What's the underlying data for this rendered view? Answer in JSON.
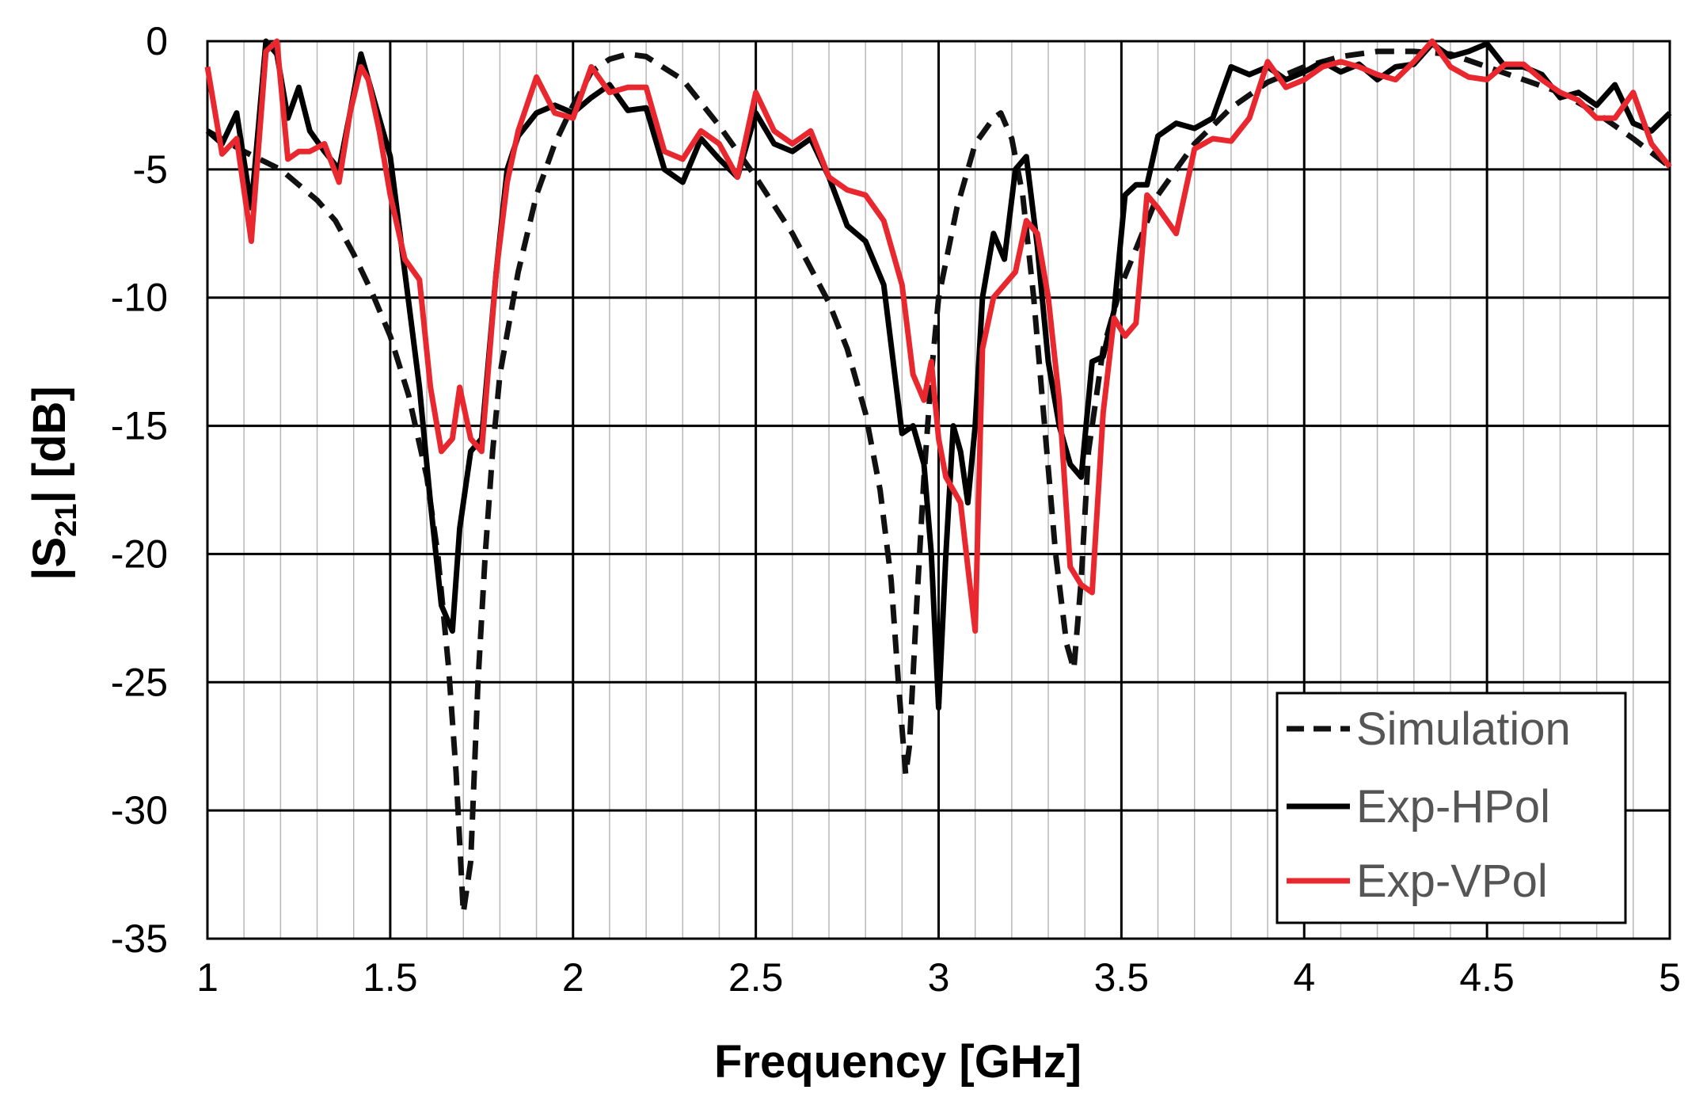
{
  "chart_data": {
    "type": "line",
    "xlabel": "Frequency [GHz]",
    "ylabel_main": "|S",
    "ylabel_sub": "21",
    "ylabel_rest": "| [dB]",
    "xlim": [
      1,
      5
    ],
    "ylim": [
      -35,
      0
    ],
    "x_major_ticks": [
      1,
      1.5,
      2,
      2.5,
      3,
      3.5,
      4,
      4.5,
      5
    ],
    "x_tick_labels": [
      "1",
      "1.5",
      "2",
      "2.5",
      "3",
      "3.5",
      "4",
      "4.5",
      "5"
    ],
    "x_minor_step": 0.1,
    "y_major_ticks": [
      0,
      -5,
      -10,
      -15,
      -20,
      -25,
      -30,
      -35
    ],
    "y_tick_labels": [
      "0",
      "-5",
      "-10",
      "-15",
      "-20",
      "-25",
      "-30",
      "-35"
    ],
    "grid": true,
    "legend_position": "bottom-right",
    "series": [
      {
        "name": "Simulation",
        "color": "#111111",
        "style": "dashed",
        "x": [
          1.0,
          1.1,
          1.2,
          1.3,
          1.35,
          1.4,
          1.45,
          1.5,
          1.55,
          1.6,
          1.63,
          1.66,
          1.68,
          1.7,
          1.72,
          1.74,
          1.76,
          1.78,
          1.8,
          1.85,
          1.9,
          1.95,
          2.0,
          2.05,
          2.1,
          2.15,
          2.2,
          2.3,
          2.4,
          2.5,
          2.6,
          2.7,
          2.75,
          2.8,
          2.84,
          2.87,
          2.89,
          2.91,
          2.92,
          2.94,
          2.96,
          2.98,
          3.0,
          3.05,
          3.1,
          3.15,
          3.17,
          3.2,
          3.23,
          3.26,
          3.29,
          3.32,
          3.35,
          3.37,
          3.39,
          3.41,
          3.45,
          3.5,
          3.6,
          3.7,
          3.8,
          3.9,
          4.0,
          4.1,
          4.2,
          4.3,
          4.4,
          4.5,
          4.6,
          4.7,
          4.8,
          4.9,
          5.0
        ],
        "y": [
          -3.5,
          -4.3,
          -5.0,
          -6.2,
          -7.0,
          -8.3,
          -9.8,
          -11.5,
          -13.8,
          -17.0,
          -20.0,
          -24.5,
          -28.5,
          -34.0,
          -32.0,
          -25.0,
          -20.0,
          -16.0,
          -13.0,
          -9.0,
          -6.0,
          -4.0,
          -2.5,
          -1.2,
          -0.7,
          -0.5,
          -0.6,
          -1.5,
          -3.3,
          -5.3,
          -7.5,
          -10.2,
          -12.0,
          -14.5,
          -17.5,
          -21.0,
          -25.0,
          -28.6,
          -27.5,
          -22.0,
          -17.0,
          -13.0,
          -10.0,
          -6.5,
          -4.0,
          -3.0,
          -2.8,
          -3.8,
          -6.0,
          -10.0,
          -15.0,
          -20.0,
          -23.5,
          -24.5,
          -21.0,
          -16.0,
          -12.0,
          -9.5,
          -6.0,
          -4.0,
          -2.6,
          -1.6,
          -1.0,
          -0.6,
          -0.4,
          -0.4,
          -0.5,
          -1.0,
          -1.5,
          -2.0,
          -2.8,
          -3.8,
          -4.9
        ]
      },
      {
        "name": "Exp-HPol",
        "color": "#000000",
        "style": "solid",
        "x": [
          1.0,
          1.04,
          1.08,
          1.12,
          1.16,
          1.19,
          1.22,
          1.25,
          1.28,
          1.32,
          1.36,
          1.39,
          1.42,
          1.44,
          1.47,
          1.5,
          1.54,
          1.58,
          1.61,
          1.64,
          1.67,
          1.69,
          1.72,
          1.75,
          1.79,
          1.82,
          1.85,
          1.9,
          1.95,
          2.0,
          2.05,
          2.1,
          2.15,
          2.2,
          2.25,
          2.3,
          2.35,
          2.4,
          2.45,
          2.5,
          2.55,
          2.6,
          2.65,
          2.7,
          2.75,
          2.8,
          2.85,
          2.9,
          2.93,
          2.96,
          2.98,
          3.0,
          3.02,
          3.04,
          3.06,
          3.08,
          3.1,
          3.12,
          3.15,
          3.18,
          3.21,
          3.24,
          3.27,
          3.3,
          3.33,
          3.36,
          3.39,
          3.42,
          3.45,
          3.48,
          3.51,
          3.54,
          3.57,
          3.6,
          3.65,
          3.7,
          3.75,
          3.8,
          3.85,
          3.9,
          3.95,
          4.0,
          4.05,
          4.1,
          4.15,
          4.2,
          4.25,
          4.3,
          4.35,
          4.4,
          4.45,
          4.5,
          4.55,
          4.6,
          4.65,
          4.7,
          4.75,
          4.8,
          4.85,
          4.9,
          4.95,
          5.0
        ],
        "y": [
          -3.5,
          -4.0,
          -2.8,
          -6.5,
          0.0,
          -0.5,
          -3.0,
          -1.8,
          -3.5,
          -4.3,
          -5.0,
          -2.8,
          -0.5,
          -1.5,
          -3.0,
          -4.5,
          -9.0,
          -13.5,
          -18.0,
          -22.0,
          -23.0,
          -19.0,
          -16.0,
          -15.5,
          -9.0,
          -5.0,
          -3.7,
          -2.8,
          -2.5,
          -2.8,
          -2.2,
          -1.7,
          -2.7,
          -2.6,
          -5.0,
          -5.5,
          -3.8,
          -4.6,
          -5.3,
          -2.8,
          -4.0,
          -4.3,
          -3.8,
          -5.3,
          -7.2,
          -7.8,
          -9.5,
          -15.3,
          -15.0,
          -16.5,
          -20.0,
          -26.0,
          -20.0,
          -15.0,
          -16.0,
          -18.0,
          -15.0,
          -10.0,
          -7.5,
          -8.5,
          -5.0,
          -4.5,
          -8.0,
          -12.5,
          -15.0,
          -16.5,
          -17.0,
          -12.5,
          -12.3,
          -10.5,
          -6.0,
          -5.6,
          -5.6,
          -3.7,
          -3.2,
          -3.4,
          -3.0,
          -1.0,
          -1.3,
          -1.0,
          -1.5,
          -1.2,
          -0.8,
          -1.2,
          -0.9,
          -1.5,
          -1.0,
          -0.9,
          -0.1,
          -0.6,
          -0.4,
          -0.1,
          -1.0,
          -1.0,
          -1.3,
          -2.2,
          -2.0,
          -2.5,
          -1.7,
          -3.2,
          -3.5,
          -2.8
        ]
      },
      {
        "name": "Exp-VPol",
        "color": "#e8282e",
        "style": "solid",
        "x": [
          1.0,
          1.04,
          1.08,
          1.12,
          1.16,
          1.19,
          1.22,
          1.25,
          1.28,
          1.32,
          1.36,
          1.39,
          1.42,
          1.44,
          1.47,
          1.5,
          1.54,
          1.58,
          1.61,
          1.64,
          1.67,
          1.69,
          1.72,
          1.75,
          1.79,
          1.82,
          1.85,
          1.9,
          1.95,
          2.0,
          2.05,
          2.1,
          2.15,
          2.2,
          2.25,
          2.3,
          2.35,
          2.4,
          2.45,
          2.5,
          2.55,
          2.6,
          2.65,
          2.7,
          2.75,
          2.8,
          2.85,
          2.9,
          2.93,
          2.96,
          2.98,
          3.0,
          3.02,
          3.04,
          3.06,
          3.08,
          3.1,
          3.12,
          3.15,
          3.18,
          3.21,
          3.24,
          3.27,
          3.3,
          3.33,
          3.36,
          3.39,
          3.42,
          3.45,
          3.48,
          3.51,
          3.54,
          3.57,
          3.6,
          3.65,
          3.7,
          3.75,
          3.8,
          3.85,
          3.9,
          3.95,
          4.0,
          4.05,
          4.1,
          4.15,
          4.2,
          4.25,
          4.3,
          4.35,
          4.4,
          4.45,
          4.5,
          4.55,
          4.6,
          4.65,
          4.7,
          4.75,
          4.8,
          4.85,
          4.9,
          4.95,
          5.0
        ],
        "y": [
          -1.0,
          -4.4,
          -3.8,
          -7.8,
          -0.4,
          0.0,
          -4.6,
          -4.3,
          -4.3,
          -4.0,
          -5.5,
          -2.8,
          -1.0,
          -1.5,
          -3.5,
          -6.0,
          -8.5,
          -9.3,
          -13.5,
          -16.0,
          -15.5,
          -13.5,
          -15.5,
          -16.0,
          -9.0,
          -5.5,
          -3.5,
          -1.4,
          -2.8,
          -3.0,
          -1.0,
          -2.0,
          -1.8,
          -1.8,
          -4.3,
          -4.6,
          -3.5,
          -4.0,
          -5.3,
          -2.0,
          -3.5,
          -4.0,
          -3.5,
          -5.3,
          -5.8,
          -6.0,
          -7.0,
          -9.5,
          -13.0,
          -14.0,
          -12.5,
          -15.5,
          -17.0,
          -17.5,
          -18.0,
          -20.5,
          -23.0,
          -12.0,
          -10.0,
          -9.5,
          -9.0,
          -7.0,
          -7.5,
          -10.0,
          -14.0,
          -20.5,
          -21.2,
          -21.5,
          -14.5,
          -10.8,
          -11.5,
          -11.0,
          -6.0,
          -6.5,
          -7.5,
          -4.2,
          -3.8,
          -3.9,
          -3.0,
          -0.8,
          -1.8,
          -1.5,
          -1.0,
          -0.8,
          -1.0,
          -1.3,
          -1.5,
          -0.8,
          0.0,
          -1.0,
          -1.4,
          -1.5,
          -0.9,
          -0.9,
          -1.5,
          -2.0,
          -2.3,
          -3.0,
          -3.0,
          -2.0,
          -4.0,
          -4.9
        ]
      }
    ]
  }
}
